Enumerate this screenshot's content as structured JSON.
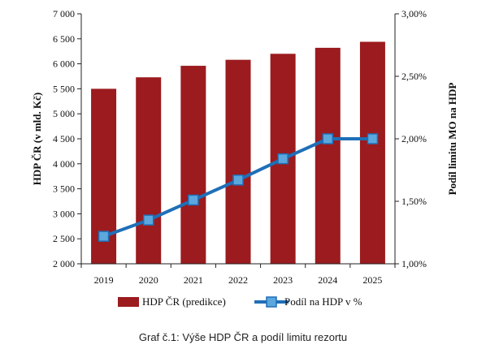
{
  "chart_data": {
    "type": "bar",
    "categories": [
      "2019",
      "2020",
      "2021",
      "2022",
      "2023",
      "2024",
      "2025"
    ],
    "series": [
      {
        "name": "HDP ČR (predikce)",
        "type": "bar",
        "axis": "left",
        "values": [
          5500,
          5730,
          5960,
          6080,
          6200,
          6320,
          6440
        ],
        "color": "#9B1B1E"
      },
      {
        "name": "Podíl na HDP v %",
        "type": "line",
        "axis": "right",
        "values": [
          1.22,
          1.35,
          1.51,
          1.67,
          1.84,
          2.0,
          2.0
        ],
        "color": "#1F6FB8",
        "marker_color": "#5BA7DE"
      }
    ],
    "ylabel": "HDP ČR (v mld. Kč)",
    "y2label": "Podíl limitu MO na HDP",
    "ylim": [
      2000,
      7000
    ],
    "y2lim": [
      1.0,
      3.0
    ],
    "yticks": [
      "2 000",
      "2 500",
      "3 000",
      "3 500",
      "4 000",
      "4 500",
      "5 000",
      "5 500",
      "6 000",
      "6 500",
      "7 000"
    ],
    "y2ticks": [
      "1,00%",
      "1,50%",
      "2,00%",
      "2,50%",
      "3,00%"
    ],
    "grid": false,
    "legend": "bottom"
  },
  "caption": "Graf č.1: Výše HDP ČR a podíl limitu rezortu"
}
